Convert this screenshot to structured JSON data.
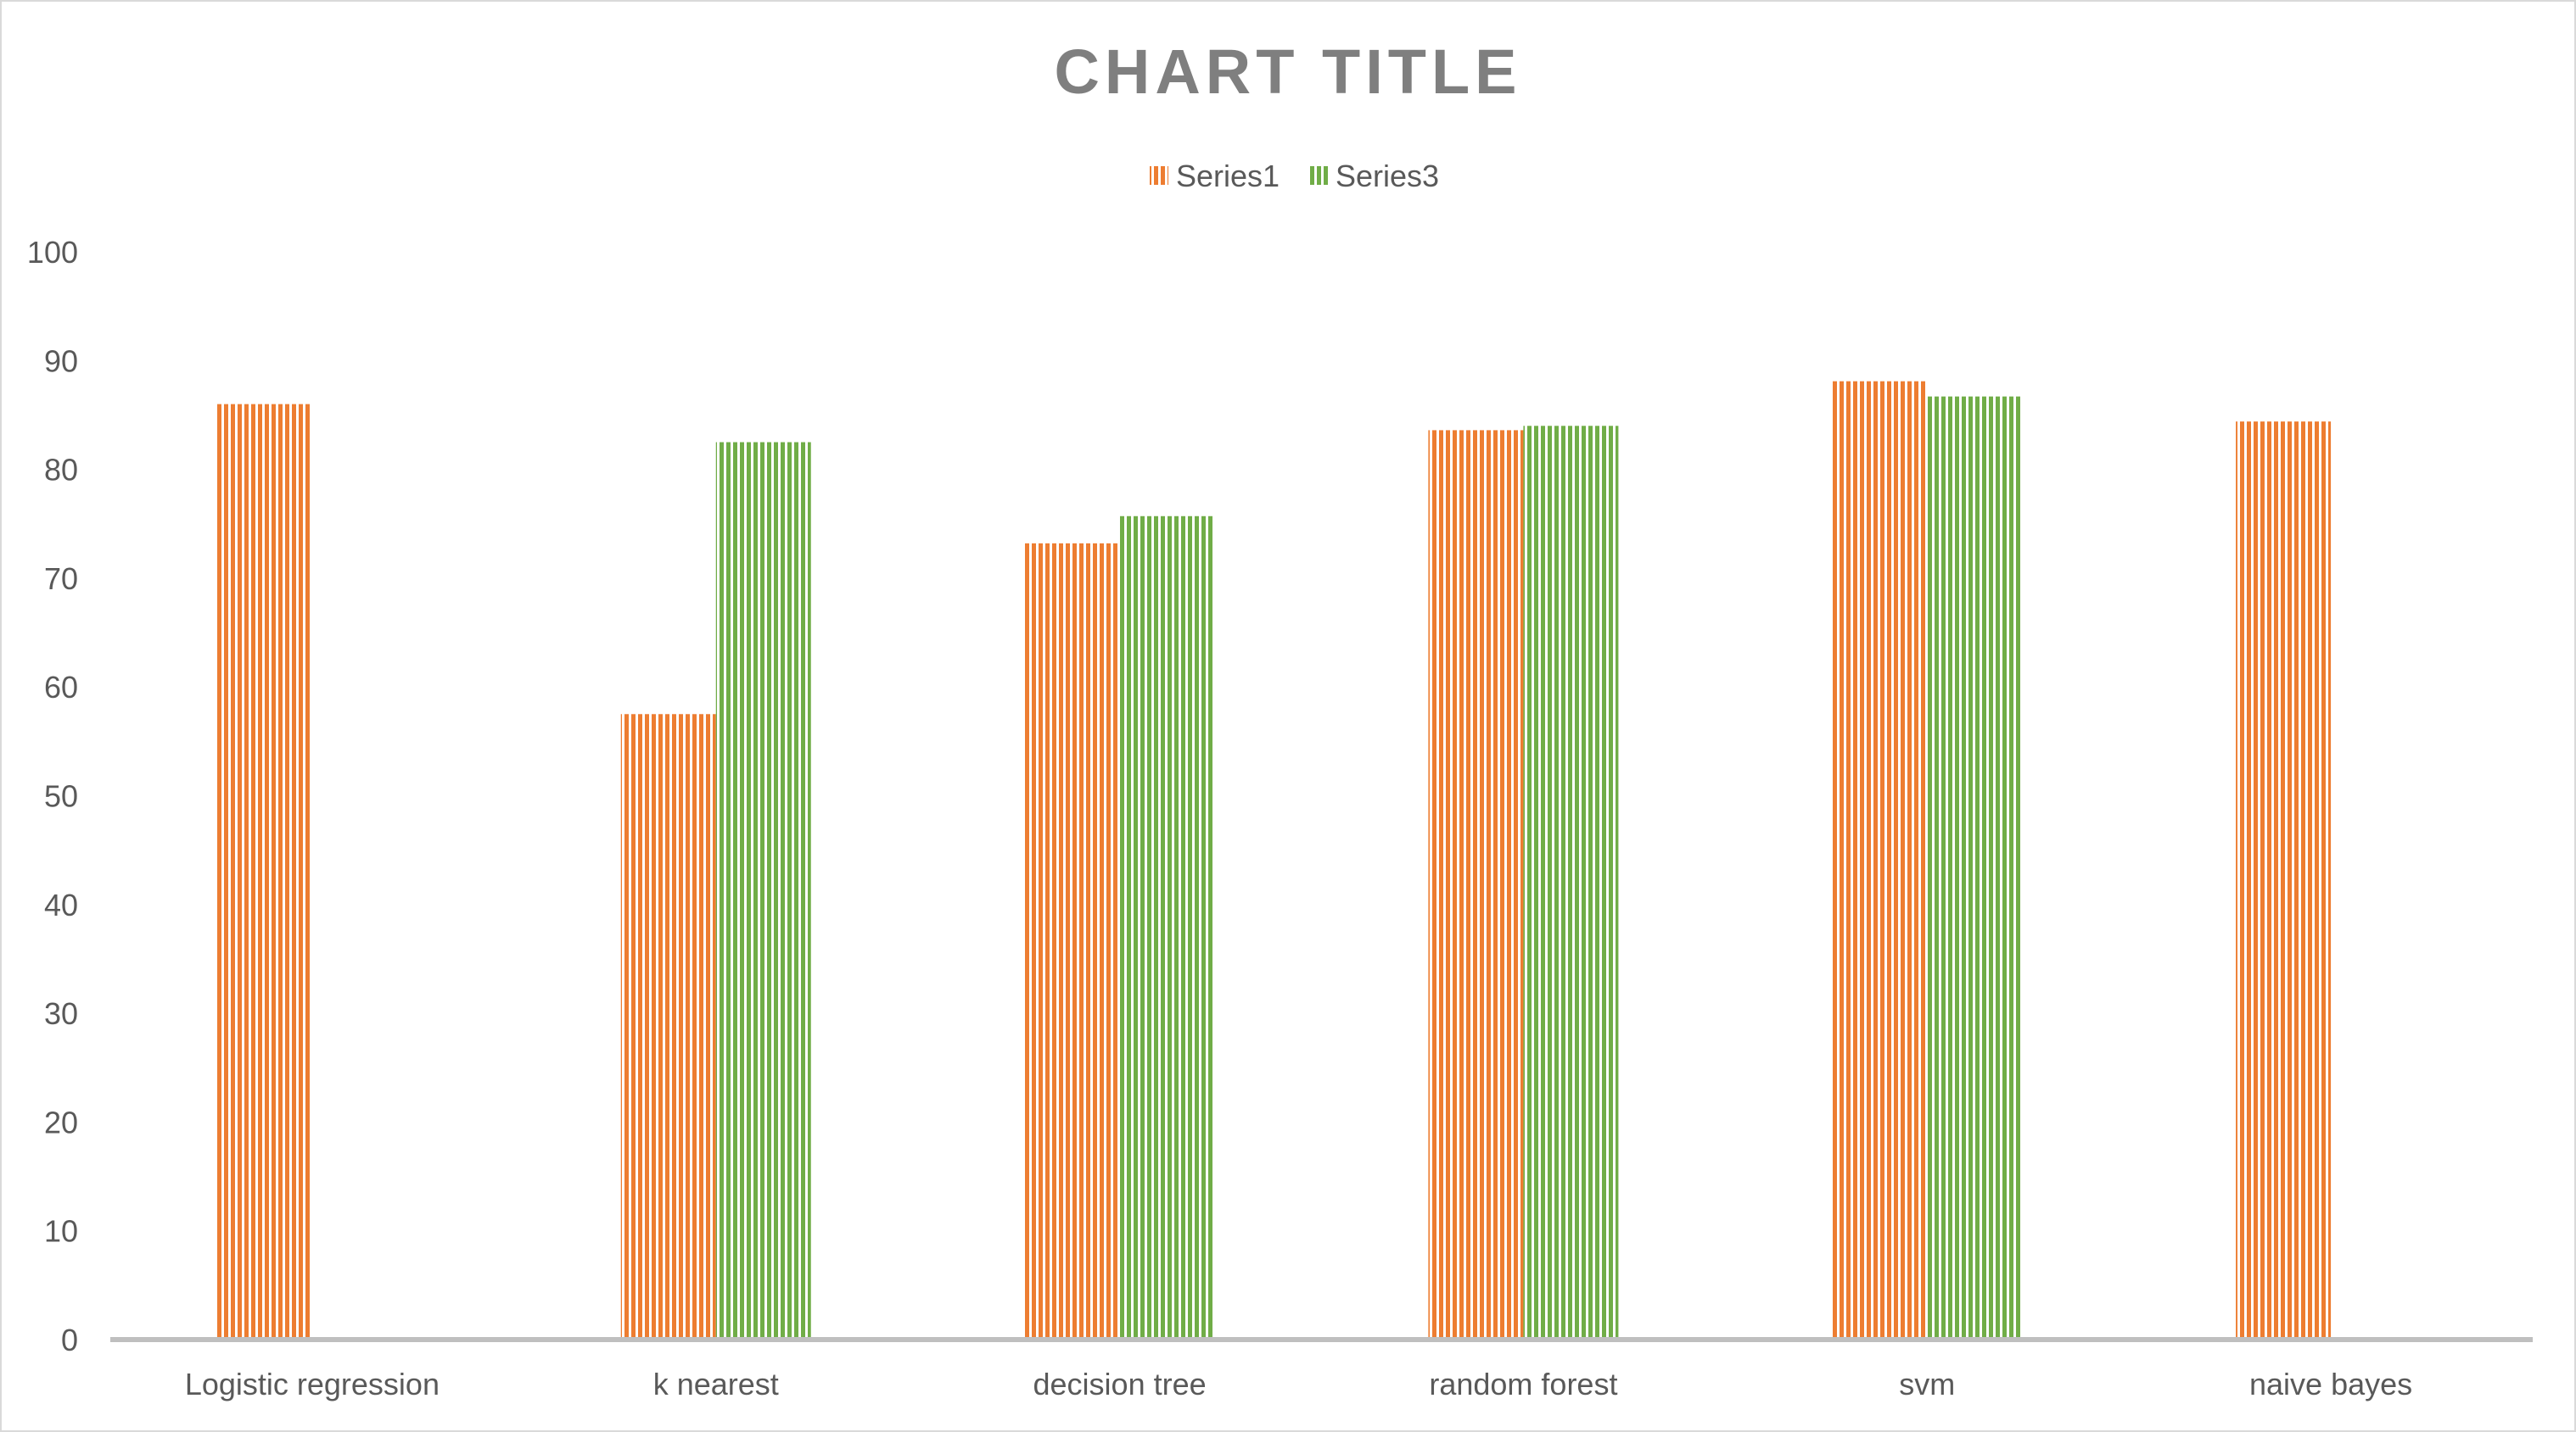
{
  "chart_data": {
    "type": "bar",
    "title": "CHART TITLE",
    "categories": [
      "Logistic regression",
      "k nearest",
      "decision tree",
      "random forest",
      "svm",
      "naive bayes"
    ],
    "series": [
      {
        "name": "Series1",
        "color": "#ed7d31",
        "values": [
          86.0,
          57.5,
          73.2,
          83.6,
          88.1,
          84.4
        ]
      },
      {
        "name": "Series3",
        "color": "#70ad47",
        "values": [
          null,
          82.5,
          75.7,
          84.0,
          86.7,
          null
        ]
      }
    ],
    "ylim": [
      0,
      100
    ],
    "yticks": [
      0,
      10,
      20,
      30,
      40,
      50,
      60,
      70,
      80,
      90,
      100
    ],
    "grid": false,
    "legend_position": "top",
    "pattern": "vertical-stripes"
  }
}
